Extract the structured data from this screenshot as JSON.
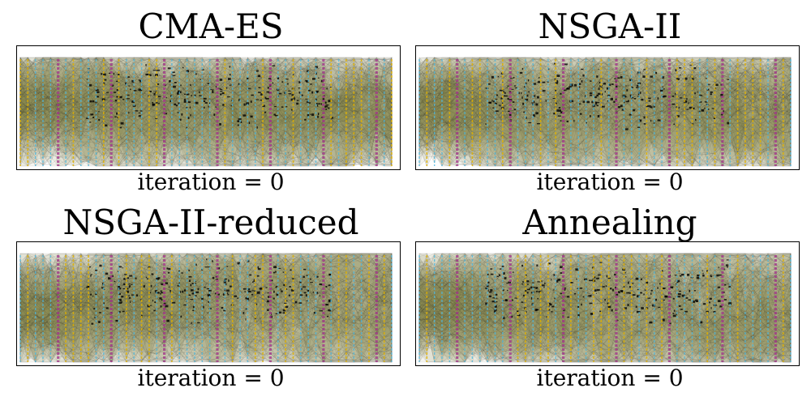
{
  "chart_data": [
    {
      "type": "parallel-coordinates",
      "title": "CMA-ES",
      "caption": "iteration = 0",
      "axis_colors": [
        "#4ab7e0",
        "#e0b000",
        "#a0308a"
      ],
      "band_color": "#7d7d3a",
      "seed": 11
    },
    {
      "type": "parallel-coordinates",
      "title": "NSGA-II",
      "caption": "iteration = 0",
      "axis_colors": [
        "#4ab7e0",
        "#e0b000",
        "#a0308a"
      ],
      "band_color": "#7d7d3a",
      "seed": 23
    },
    {
      "type": "parallel-coordinates",
      "title": "NSGA-II-reduced",
      "caption": "iteration = 0",
      "axis_colors": [
        "#4ab7e0",
        "#e0b000",
        "#a0308a"
      ],
      "band_color": "#7d7d3a",
      "seed": 37
    },
    {
      "type": "parallel-coordinates",
      "title": "Annealing",
      "caption": "iteration = 0",
      "axis_colors": [
        "#4ab7e0",
        "#e0b000",
        "#a0308a"
      ],
      "band_color": "#7d7d3a",
      "seed": 51
    }
  ]
}
